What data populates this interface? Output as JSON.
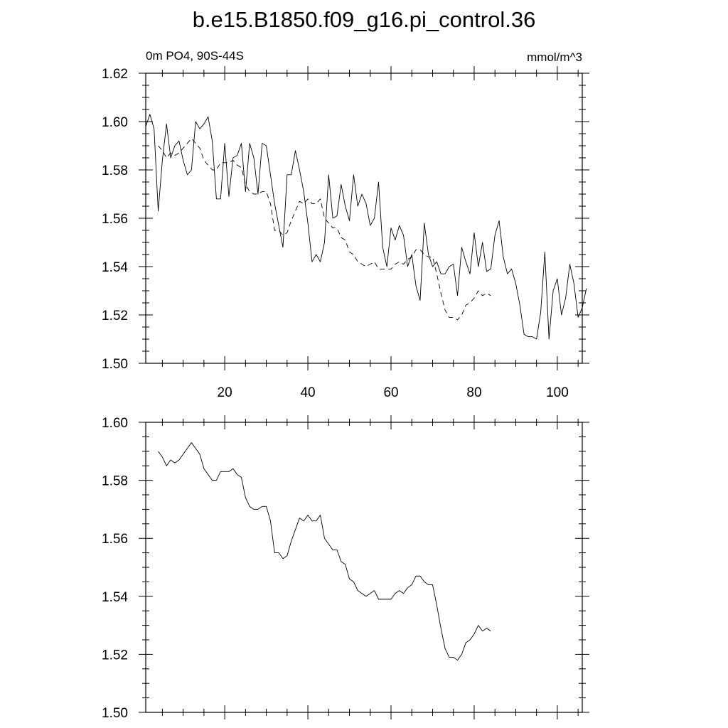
{
  "title": "b.e15.B1850.f09_g16.pi_control.36",
  "chart_data": [
    {
      "type": "line",
      "subtitle_left": "0m PO4, 90S-44S",
      "subtitle_right": "mmol/m^3",
      "xlim": [
        1,
        106
      ],
      "ylim": [
        1.5,
        1.62
      ],
      "x_ticks": [
        20,
        40,
        60,
        80,
        100
      ],
      "y_ticks": [
        "1.50",
        "1.52",
        "1.54",
        "1.56",
        "1.58",
        "1.60",
        "1.62"
      ],
      "series": [
        {
          "style": "solid",
          "x_start": 1,
          "values": [
            1.598,
            1.603,
            1.597,
            1.563,
            1.584,
            1.599,
            1.585,
            1.59,
            1.592,
            1.584,
            1.578,
            1.58,
            1.6,
            1.597,
            1.599,
            1.602,
            1.592,
            1.568,
            1.568,
            1.591,
            1.569,
            1.585,
            1.586,
            1.591,
            1.571,
            1.591,
            1.585,
            1.57,
            1.591,
            1.59,
            1.578,
            1.566,
            1.557,
            1.548,
            1.578,
            1.578,
            1.588,
            1.58,
            1.571,
            1.558,
            1.542,
            1.545,
            1.542,
            1.55,
            1.578,
            1.56,
            1.561,
            1.574,
            1.565,
            1.559,
            1.578,
            1.565,
            1.57,
            1.566,
            1.557,
            1.56,
            1.575,
            1.548,
            1.54,
            1.556,
            1.551,
            1.557,
            1.553,
            1.54,
            1.545,
            1.532,
            1.526,
            1.558,
            1.545,
            1.54,
            1.542,
            1.537,
            1.537,
            1.54,
            1.541,
            1.528,
            1.548,
            1.542,
            1.537,
            1.554,
            1.54,
            1.55,
            1.538,
            1.539,
            1.553,
            1.559,
            1.544,
            1.537,
            1.539,
            1.533,
            1.524,
            1.512,
            1.511,
            1.511,
            1.51,
            1.521,
            1.546,
            1.51,
            1.53,
            1.535,
            1.52,
            1.527,
            1.541,
            1.533,
            1.519,
            1.523,
            1.531
          ]
        },
        {
          "style": "dashed",
          "x_start": 4,
          "values": [
            1.59,
            1.588,
            1.585,
            1.587,
            1.586,
            1.587,
            1.589,
            1.591,
            1.593,
            1.591,
            1.589,
            1.584,
            1.582,
            1.58,
            1.58,
            1.583,
            1.583,
            1.583,
            1.584,
            1.582,
            1.581,
            1.574,
            1.571,
            1.57,
            1.57,
            1.571,
            1.571,
            1.566,
            1.555,
            1.555,
            1.553,
            1.554,
            1.559,
            1.563,
            1.567,
            1.566,
            1.568,
            1.566,
            1.566,
            1.568,
            1.56,
            1.558,
            1.556,
            1.556,
            1.552,
            1.551,
            1.546,
            1.545,
            1.542,
            1.541,
            1.54,
            1.541,
            1.542,
            1.539,
            1.539,
            1.539,
            1.539,
            1.541,
            1.542,
            1.541,
            1.543,
            1.544,
            1.547,
            1.547,
            1.545,
            1.544,
            1.544,
            1.537,
            1.529,
            1.522,
            1.519,
            1.519,
            1.518,
            1.52,
            1.524,
            1.525,
            1.527,
            1.53,
            1.528,
            1.529,
            1.528
          ]
        }
      ]
    },
    {
      "type": "line",
      "xlim": [
        1,
        106
      ],
      "ylim": [
        1.5,
        1.6
      ],
      "x_ticks": [
        20,
        40,
        60,
        80,
        100
      ],
      "y_ticks": [
        "1.50",
        "1.52",
        "1.54",
        "1.56",
        "1.58",
        "1.60"
      ],
      "series": [
        {
          "style": "solid",
          "x_start": 4,
          "values": [
            1.59,
            1.588,
            1.585,
            1.587,
            1.586,
            1.587,
            1.589,
            1.591,
            1.593,
            1.591,
            1.589,
            1.584,
            1.582,
            1.58,
            1.58,
            1.583,
            1.583,
            1.583,
            1.584,
            1.582,
            1.581,
            1.574,
            1.571,
            1.57,
            1.57,
            1.571,
            1.571,
            1.566,
            1.555,
            1.555,
            1.553,
            1.554,
            1.559,
            1.563,
            1.567,
            1.566,
            1.568,
            1.566,
            1.566,
            1.568,
            1.56,
            1.558,
            1.556,
            1.556,
            1.552,
            1.551,
            1.546,
            1.545,
            1.542,
            1.541,
            1.54,
            1.541,
            1.542,
            1.539,
            1.539,
            1.539,
            1.539,
            1.541,
            1.542,
            1.541,
            1.543,
            1.544,
            1.547,
            1.547,
            1.545,
            1.544,
            1.544,
            1.537,
            1.529,
            1.522,
            1.519,
            1.519,
            1.518,
            1.52,
            1.524,
            1.525,
            1.527,
            1.53,
            1.528,
            1.529,
            1.528
          ]
        }
      ]
    }
  ]
}
